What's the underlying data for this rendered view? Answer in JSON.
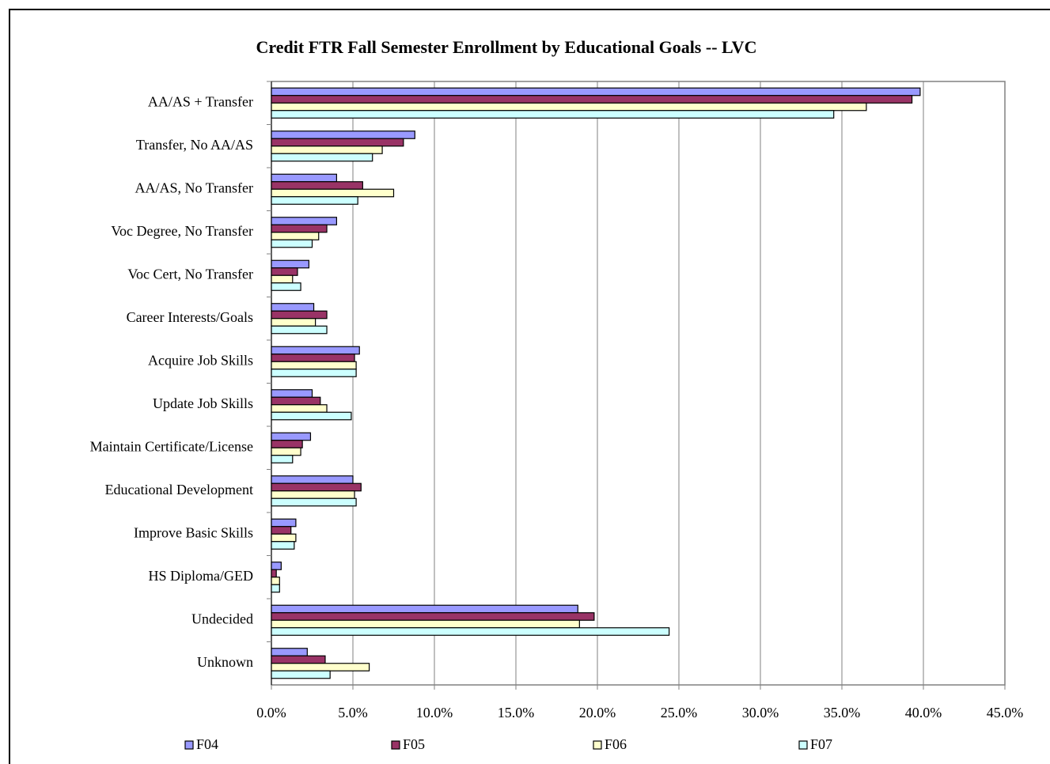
{
  "chart_data": {
    "type": "hbar",
    "title": "Credit FTR Fall Semester Enrollment by Educational Goals -- LVC",
    "categories": [
      "AA/AS + Transfer",
      "Transfer, No AA/AS",
      "AA/AS, No Transfer",
      "Voc Degree, No Transfer",
      "Voc Cert, No Transfer",
      "Career Interests/Goals",
      "Acquire Job Skills",
      "Update Job Skills",
      "Maintain Certificate/License",
      "Educational Development",
      "Improve Basic Skills",
      "HS Diploma/GED",
      "Undecided",
      "Unknown"
    ],
    "series": [
      {
        "name": "F04",
        "color": "#9999ff",
        "values": [
          39.8,
          8.8,
          4.0,
          4.0,
          2.3,
          2.6,
          5.4,
          2.5,
          2.4,
          5.0,
          1.5,
          0.6,
          18.8,
          2.2
        ]
      },
      {
        "name": "F05",
        "color": "#993366",
        "values": [
          39.3,
          8.1,
          5.6,
          3.4,
          1.6,
          3.4,
          5.1,
          3.0,
          1.9,
          5.5,
          1.2,
          0.3,
          19.8,
          3.3
        ]
      },
      {
        "name": "F06",
        "color": "#ffffcc",
        "values": [
          36.5,
          6.8,
          7.5,
          2.9,
          1.3,
          2.7,
          5.2,
          3.4,
          1.8,
          5.1,
          1.5,
          0.5,
          18.9,
          6.0
        ]
      },
      {
        "name": "F07",
        "color": "#ccffff",
        "values": [
          34.5,
          6.2,
          5.3,
          2.5,
          1.8,
          3.4,
          5.2,
          4.9,
          1.3,
          5.2,
          1.4,
          0.5,
          24.4,
          3.6
        ]
      }
    ],
    "xlim": [
      0,
      45
    ],
    "xticks": [
      {
        "value": 0,
        "label": "0.0%"
      },
      {
        "value": 5,
        "label": "5.0%"
      },
      {
        "value": 10,
        "label": "10.0%"
      },
      {
        "value": 15,
        "label": "15.0%"
      },
      {
        "value": 20,
        "label": "20.0%"
      },
      {
        "value": 25,
        "label": "25.0%"
      },
      {
        "value": 30,
        "label": "30.0%"
      },
      {
        "value": 35,
        "label": "35.0%"
      },
      {
        "value": 40,
        "label": "40.0%"
      },
      {
        "value": 45,
        "label": "45.0%"
      }
    ],
    "grid": true,
    "legend": "bottom"
  }
}
